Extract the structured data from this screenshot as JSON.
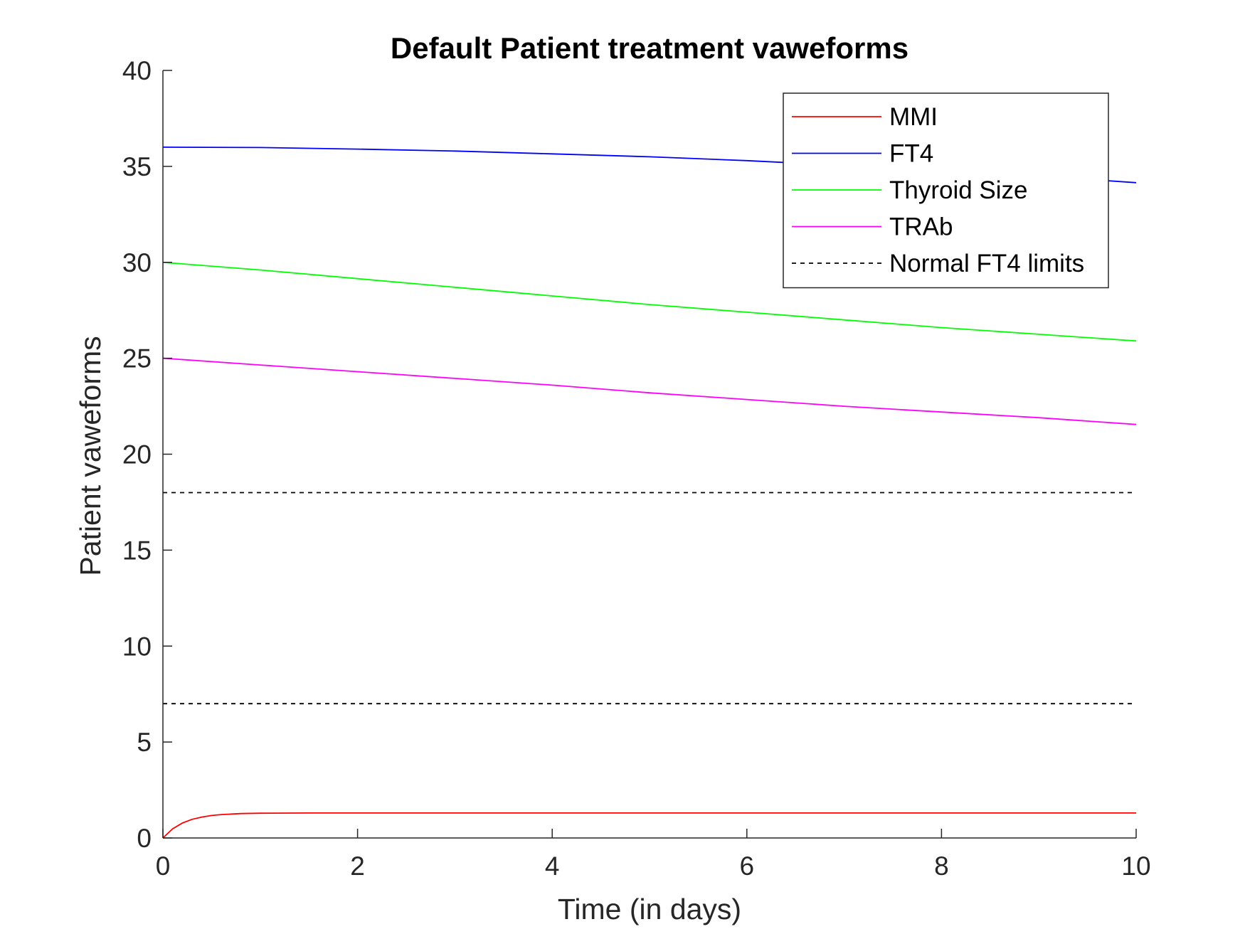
{
  "chart_data": {
    "type": "line",
    "title": "Default Patient treatment vaweforms",
    "xlabel": "Time (in days)",
    "ylabel": "Patient vaweforms",
    "xlim": [
      0,
      10
    ],
    "ylim": [
      0,
      40
    ],
    "xticks": [
      0,
      2,
      4,
      6,
      8,
      10
    ],
    "yticks": [
      0,
      5,
      10,
      15,
      20,
      25,
      30,
      35,
      40
    ],
    "grid": false,
    "legend_position": "top-right",
    "series": [
      {
        "name": "MMI",
        "color": "#ff0000",
        "style": "solid",
        "x": [
          0,
          0.1,
          0.2,
          0.3,
          0.4,
          0.5,
          0.6,
          0.8,
          1.0,
          1.5,
          2,
          3,
          4,
          5,
          6,
          7,
          8,
          9,
          10
        ],
        "y": [
          0,
          0.48,
          0.78,
          0.97,
          1.09,
          1.17,
          1.22,
          1.27,
          1.29,
          1.3,
          1.3,
          1.3,
          1.3,
          1.3,
          1.3,
          1.3,
          1.3,
          1.3,
          1.3
        ]
      },
      {
        "name": "FT4",
        "color": "#0000ff",
        "style": "solid",
        "x": [
          0,
          1,
          2,
          3,
          4,
          5,
          6,
          7,
          8,
          9,
          10
        ],
        "y": [
          36.0,
          35.98,
          35.9,
          35.8,
          35.65,
          35.5,
          35.3,
          35.05,
          34.8,
          34.5,
          34.15
        ]
      },
      {
        "name": "Thyroid Size",
        "color": "#00ff00",
        "style": "solid",
        "x": [
          0,
          1,
          2,
          3,
          4,
          5,
          6,
          7,
          8,
          9,
          10
        ],
        "y": [
          30.0,
          29.6,
          29.15,
          28.7,
          28.25,
          27.8,
          27.4,
          27.0,
          26.6,
          26.25,
          25.9
        ]
      },
      {
        "name": "TRAb",
        "color": "#ff00ff",
        "style": "solid",
        "x": [
          0,
          1,
          2,
          3,
          4,
          5,
          6,
          7,
          8,
          9,
          10
        ],
        "y": [
          25.0,
          24.65,
          24.3,
          23.95,
          23.6,
          23.2,
          22.85,
          22.5,
          22.2,
          21.9,
          21.55
        ]
      },
      {
        "name": "Normal FT4 limits",
        "color": "#000000",
        "style": "dashed",
        "x": [
          0,
          10
        ],
        "y": [
          18,
          18
        ]
      },
      {
        "name": "",
        "color": "#000000",
        "style": "dashed",
        "x": [
          0,
          10
        ],
        "y": [
          7,
          7
        ]
      }
    ]
  }
}
